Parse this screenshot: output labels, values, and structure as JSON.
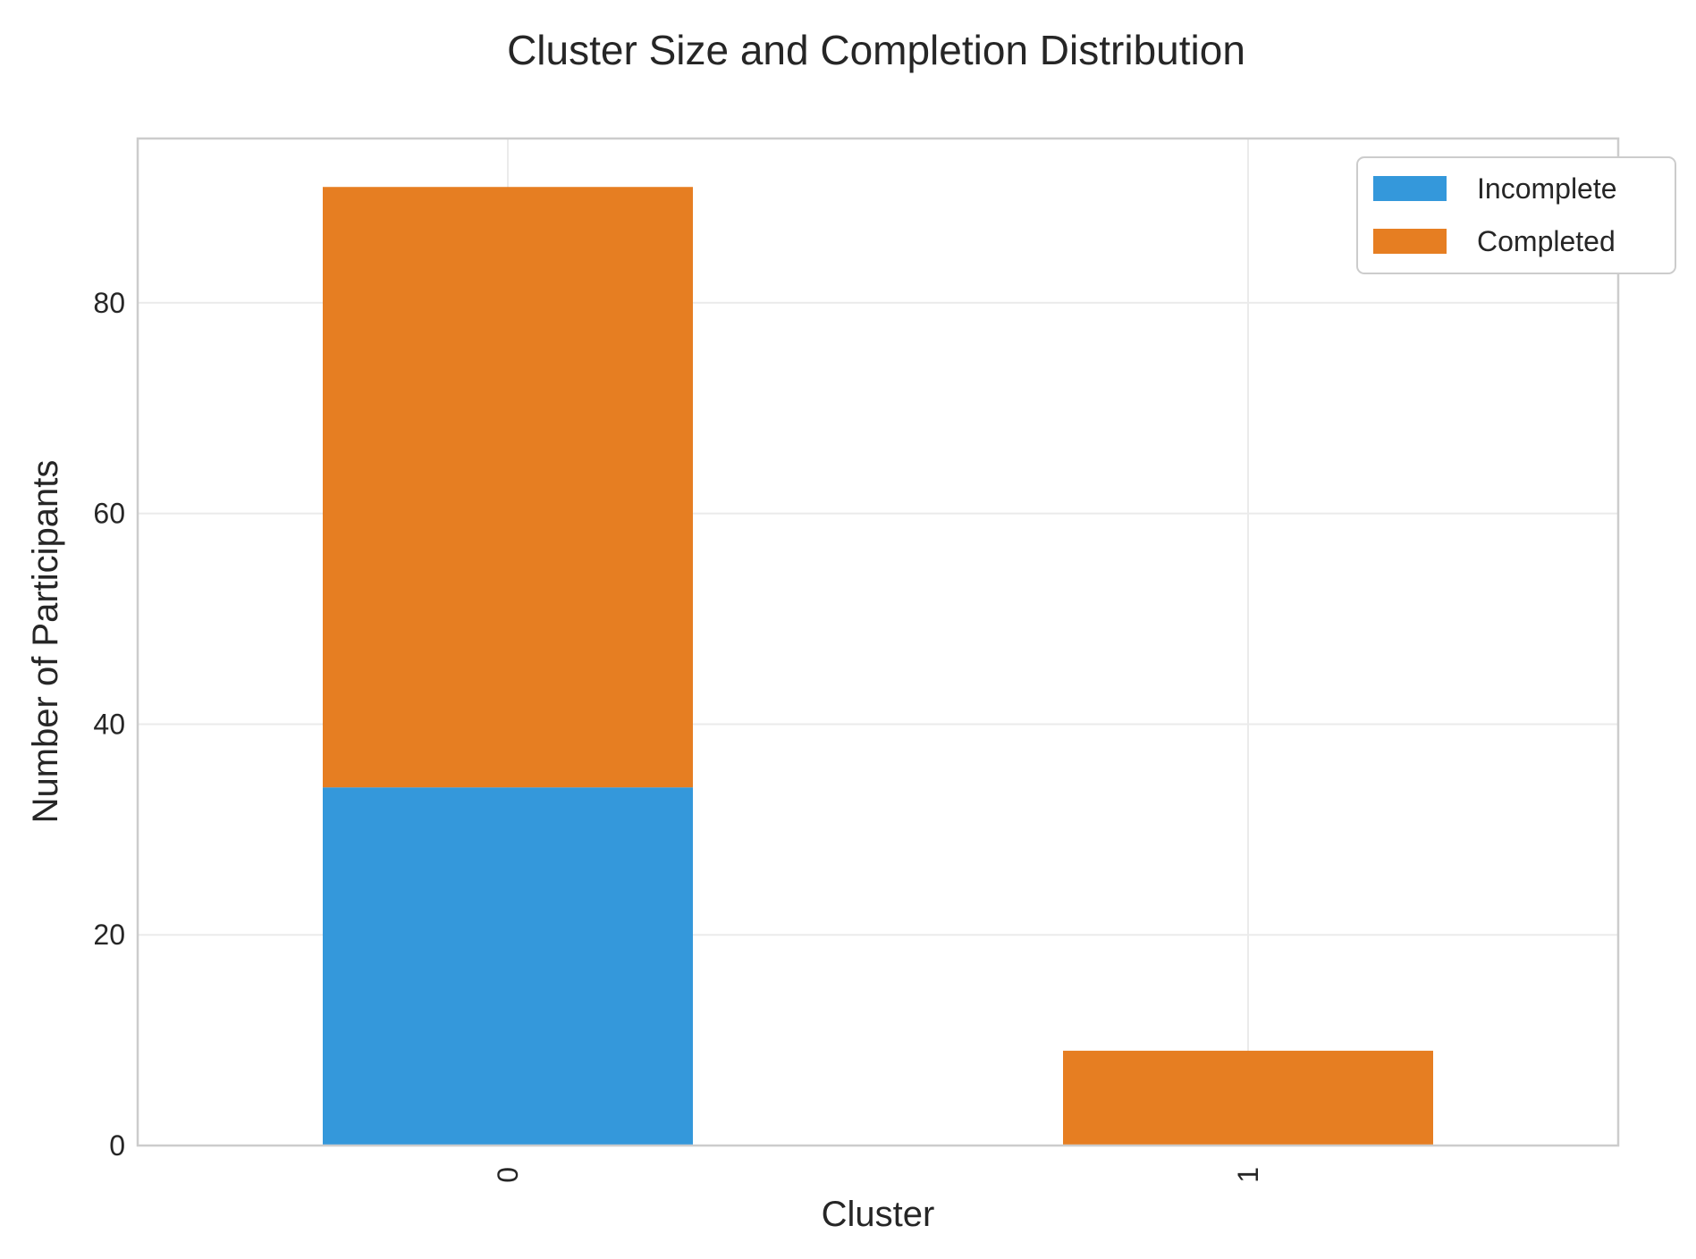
{
  "chart_data": {
    "type": "bar",
    "stacked": true,
    "title": "Cluster Size and Completion Distribution",
    "xlabel": "Cluster",
    "ylabel": "Number of Participants",
    "categories": [
      "0",
      "1"
    ],
    "series": [
      {
        "name": "Incomplete",
        "values": [
          34,
          0
        ],
        "color": "#3498db"
      },
      {
        "name": "Completed",
        "values": [
          57,
          9
        ],
        "color": "#e67e22"
      }
    ],
    "ylim": [
      0,
      95.6
    ],
    "yticks": [
      0,
      20,
      40,
      60,
      80
    ],
    "grid": true,
    "legend_position": "top-right"
  }
}
